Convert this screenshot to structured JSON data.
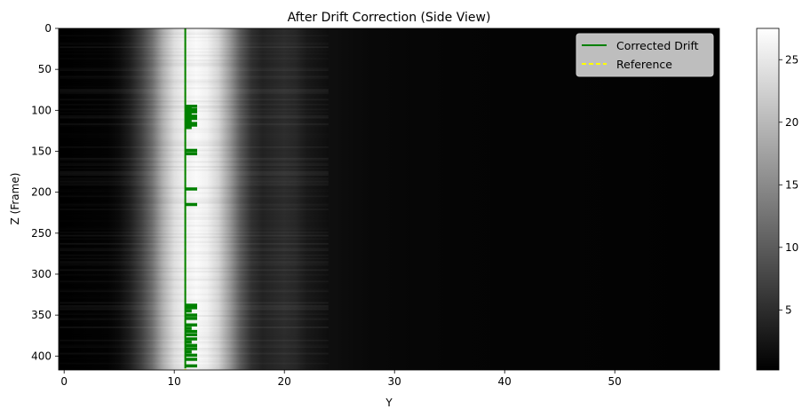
{
  "chart_data": {
    "type": "heatmap",
    "title": "After Drift Correction (Side View)",
    "xlabel": "Y",
    "ylabel": "Z (Frame)",
    "colormap": "gray",
    "xlim": [
      -0.5,
      59.5
    ],
    "ylim": [
      417,
      0
    ],
    "y_inverted": true,
    "xticks": [
      0,
      10,
      20,
      30,
      40,
      50
    ],
    "xtick_labels": [
      "0",
      "10",
      "20",
      "30",
      "40",
      "50"
    ],
    "yticks": [
      0,
      50,
      100,
      150,
      200,
      250,
      300,
      350,
      400
    ],
    "ytick_labels": [
      "0",
      "50",
      "100",
      "150",
      "200",
      "250",
      "300",
      "350",
      "400"
    ],
    "colorbar": {
      "range": [
        0.2,
        27.5
      ],
      "ticks": [
        5,
        10,
        15,
        20,
        25
      ],
      "tick_labels": [
        "5",
        "10",
        "15",
        "20",
        "25"
      ]
    },
    "intensity_profile": {
      "y": [
        0,
        4,
        5,
        6,
        7,
        8,
        9,
        10,
        11,
        12,
        13,
        14,
        15,
        16,
        17,
        18,
        19,
        20,
        21,
        22,
        24,
        26,
        28,
        35,
        59
      ],
      "value": [
        0.3,
        0.6,
        1.5,
        3.5,
        7,
        12,
        19,
        24,
        26,
        27,
        26,
        23,
        17,
        10,
        5.5,
        4,
        4.5,
        5,
        4.5,
        3,
        1.8,
        1.4,
        1.1,
        0.7,
        0.4
      ]
    },
    "legend": {
      "location": "upper right",
      "entries": [
        {
          "label": "Corrected Drift",
          "color": "#008000",
          "style": "solid"
        },
        {
          "label": "Reference",
          "color": "#ffff00",
          "style": "dashed"
        }
      ]
    },
    "series": [
      {
        "name": "Reference",
        "type": "vline",
        "x": 11,
        "color": "#ffff00",
        "style": "dashed"
      },
      {
        "name": "Corrected Drift",
        "type": "line",
        "color": "#008000",
        "baseline_x": 11,
        "excursions": [
          {
            "z": 95,
            "x": 12
          },
          {
            "z": 97,
            "x": 11.5
          },
          {
            "z": 99,
            "x": 12
          },
          {
            "z": 102,
            "x": 12
          },
          {
            "z": 104,
            "x": 11.5
          },
          {
            "z": 107,
            "x": 12
          },
          {
            "z": 110,
            "x": 12
          },
          {
            "z": 113,
            "x": 11.5
          },
          {
            "z": 116,
            "x": 12
          },
          {
            "z": 118,
            "x": 12
          },
          {
            "z": 121,
            "x": 11.5
          },
          {
            "z": 149,
            "x": 12
          },
          {
            "z": 153,
            "x": 12
          },
          {
            "z": 196,
            "x": 12
          },
          {
            "z": 215,
            "x": 12
          },
          {
            "z": 338,
            "x": 12
          },
          {
            "z": 341,
            "x": 12
          },
          {
            "z": 345,
            "x": 11.5
          },
          {
            "z": 350,
            "x": 12
          },
          {
            "z": 354,
            "x": 12
          },
          {
            "z": 362,
            "x": 12
          },
          {
            "z": 366,
            "x": 11.5
          },
          {
            "z": 370,
            "x": 12
          },
          {
            "z": 374,
            "x": 12
          },
          {
            "z": 379,
            "x": 12
          },
          {
            "z": 383,
            "x": 11.5
          },
          {
            "z": 387,
            "x": 12
          },
          {
            "z": 391,
            "x": 12
          },
          {
            "z": 395,
            "x": 11.5
          },
          {
            "z": 399,
            "x": 12
          },
          {
            "z": 404,
            "x": 12
          },
          {
            "z": 412,
            "x": 12
          }
        ]
      }
    ]
  }
}
